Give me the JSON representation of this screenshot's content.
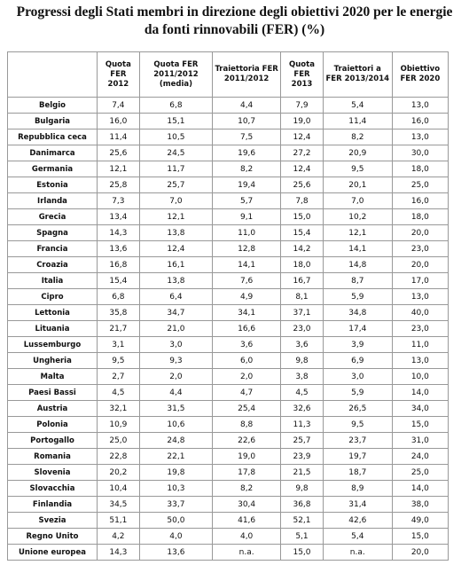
{
  "title": "Progressi degli Stati membri in direzione degli obiettivi 2020 per le energie da fonti rinnovabili (FER) (%)",
  "table": {
    "header": [
      "Quota FER 2012",
      "Quota FER 2011/2012 (media)",
      "Traiettoria FER 2011/2012",
      "Quota FER 2013",
      "Traiettori a FER 2013/2014",
      "Obiettivo FER 2020"
    ],
    "rows": [
      [
        "Belgio",
        "7,4",
        "6,8",
        "4,4",
        "7,9",
        "5,4",
        "13,0"
      ],
      [
        "Bulgaria",
        "16,0",
        "15,1",
        "10,7",
        "19,0",
        "11,4",
        "16,0"
      ],
      [
        "Repubblica ceca",
        "11,4",
        "10,5",
        "7,5",
        "12,4",
        "8,2",
        "13,0"
      ],
      [
        "Danimarca",
        "25,6",
        "24,5",
        "19,6",
        "27,2",
        "20,9",
        "30,0"
      ],
      [
        "Germania",
        "12,1",
        "11,7",
        "8,2",
        "12,4",
        "9,5",
        "18,0"
      ],
      [
        "Estonia",
        "25,8",
        "25,7",
        "19,4",
        "25,6",
        "20,1",
        "25,0"
      ],
      [
        "Irlanda",
        "7,3",
        "7,0",
        "5,7",
        "7,8",
        "7,0",
        "16,0"
      ],
      [
        "Grecia",
        "13,4",
        "12,1",
        "9,1",
        "15,0",
        "10,2",
        "18,0"
      ],
      [
        "Spagna",
        "14,3",
        "13,8",
        "11,0",
        "15,4",
        "12,1",
        "20,0"
      ],
      [
        "Francia",
        "13,6",
        "12,4",
        "12,8",
        "14,2",
        "14,1",
        "23,0"
      ],
      [
        "Croazia",
        "16,8",
        "16,1",
        "14,1",
        "18,0",
        "14,8",
        "20,0"
      ],
      [
        "Italia",
        "15,4",
        "13,8",
        "7,6",
        "16,7",
        "8,7",
        "17,0"
      ],
      [
        "Cipro",
        "6,8",
        "6,4",
        "4,9",
        "8,1",
        "5,9",
        "13,0"
      ],
      [
        "Lettonia",
        "35,8",
        "34,7",
        "34,1",
        "37,1",
        "34,8",
        "40,0"
      ],
      [
        "Lituania",
        "21,7",
        "21,0",
        "16,6",
        "23,0",
        "17,4",
        "23,0"
      ],
      [
        "Lussemburgo",
        "3,1",
        "3,0",
        "3,6",
        "3,6",
        "3,9",
        "11,0"
      ],
      [
        "Ungheria",
        "9,5",
        "9,3",
        "6,0",
        "9,8",
        "6,9",
        "13,0"
      ],
      [
        "Malta",
        "2,7",
        "2,0",
        "2,0",
        "3,8",
        "3,0",
        "10,0"
      ],
      [
        "Paesi Bassi",
        "4,5",
        "4,4",
        "4,7",
        "4,5",
        "5,9",
        "14,0"
      ],
      [
        "Austria",
        "32,1",
        "31,5",
        "25,4",
        "32,6",
        "26,5",
        "34,0"
      ],
      [
        "Polonia",
        "10,9",
        "10,6",
        "8,8",
        "11,3",
        "9,5",
        "15,0"
      ],
      [
        "Portogallo",
        "25,0",
        "24,8",
        "22,6",
        "25,7",
        "23,7",
        "31,0"
      ],
      [
        "Romania",
        "22,8",
        "22,1",
        "19,0",
        "23,9",
        "19,7",
        "24,0"
      ],
      [
        "Slovenia",
        "20,2",
        "19,8",
        "17,8",
        "21,5",
        "18,7",
        "25,0"
      ],
      [
        "Slovacchia",
        "10,4",
        "10,3",
        "8,2",
        "9,8",
        "8,9",
        "14,0"
      ],
      [
        "Finlandia",
        "34,5",
        "33,7",
        "30,4",
        "36,8",
        "31,4",
        "38,0"
      ],
      [
        "Svezia",
        "51,1",
        "50,0",
        "41,6",
        "52,1",
        "42,6",
        "49,0"
      ],
      [
        "Regno Unito",
        "4,2",
        "4,0",
        "4,0",
        "5,1",
        "5,4",
        "15,0"
      ],
      [
        "Unione europea",
        "14,3",
        "13,6",
        "n.a.",
        "15,0",
        "n.a.",
        "20,0"
      ]
    ]
  }
}
